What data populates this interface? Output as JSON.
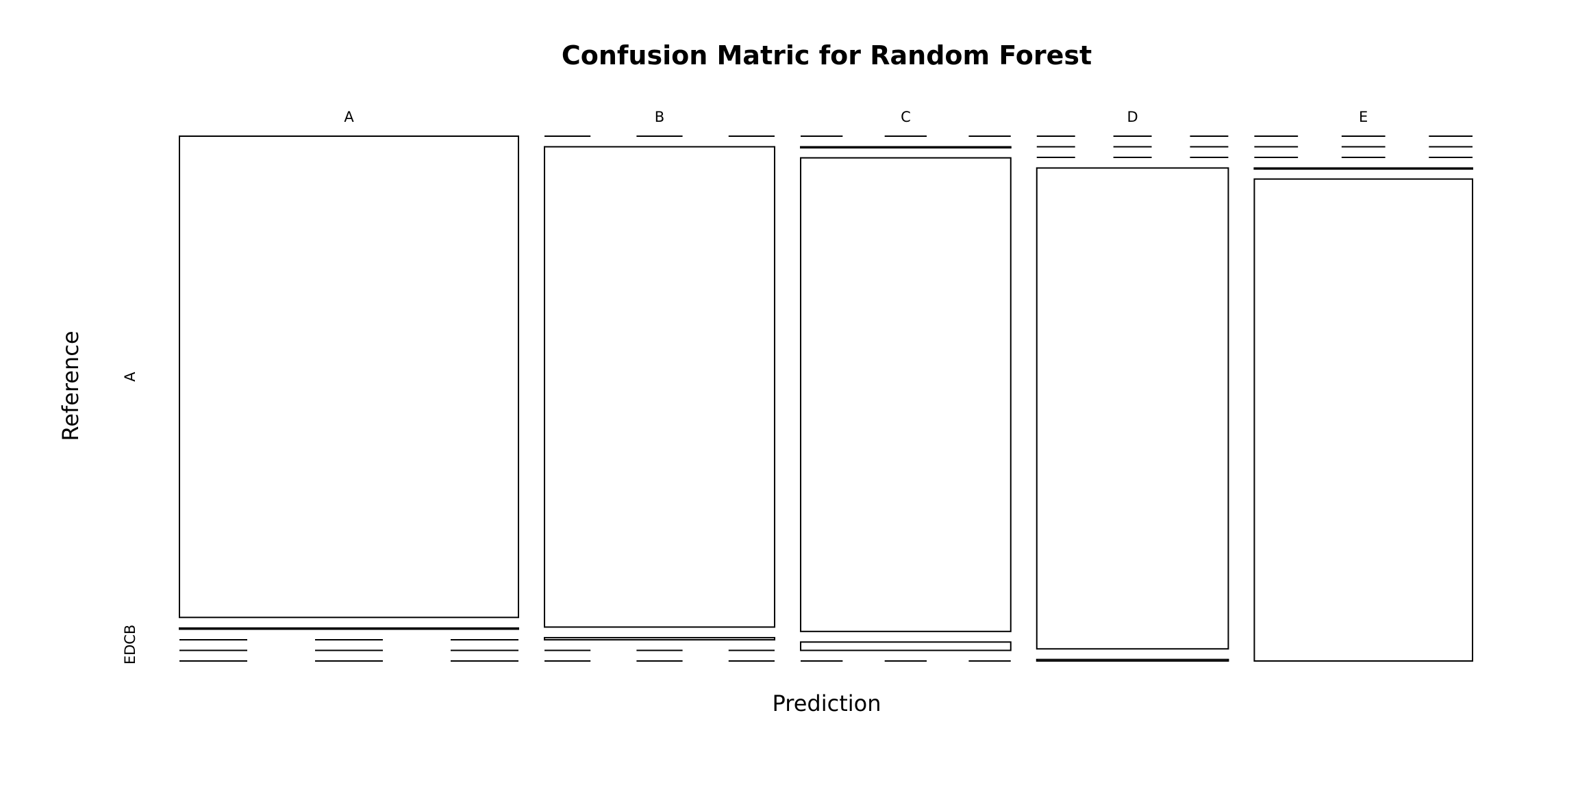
{
  "chart_data": {
    "type": "mosaic",
    "title": "Confusion Matric for Random Forest",
    "xlabel": "Prediction",
    "ylabel": "Reference",
    "prediction_levels": [
      "A",
      "B",
      "C",
      "D",
      "E"
    ],
    "reference_levels": [
      "A",
      "B",
      "C",
      "D",
      "E"
    ],
    "ytick_labels": [
      {
        "text": "A",
        "level": "A"
      },
      {
        "text": "EDCB",
        "level": "B-E"
      }
    ],
    "matrix": [
      {
        "prediction": "A",
        "reference": {
          "A": 1674,
          "B": 4,
          "C": 0,
          "D": 0,
          "E": 0
        }
      },
      {
        "prediction": "B",
        "reference": {
          "A": 0,
          "B": 1134,
          "C": 5,
          "D": 0,
          "E": 0
        }
      },
      {
        "prediction": "C",
        "reference": {
          "A": 0,
          "B": 1,
          "C": 1021,
          "D": 18,
          "E": 0
        }
      },
      {
        "prediction": "D",
        "reference": {
          "A": 0,
          "B": 0,
          "C": 0,
          "D": 945,
          "E": 3
        }
      },
      {
        "prediction": "E",
        "reference": {
          "A": 0,
          "B": 0,
          "C": 0,
          "D": 1,
          "E": 1079
        }
      }
    ],
    "grid": false,
    "legend": "none"
  }
}
